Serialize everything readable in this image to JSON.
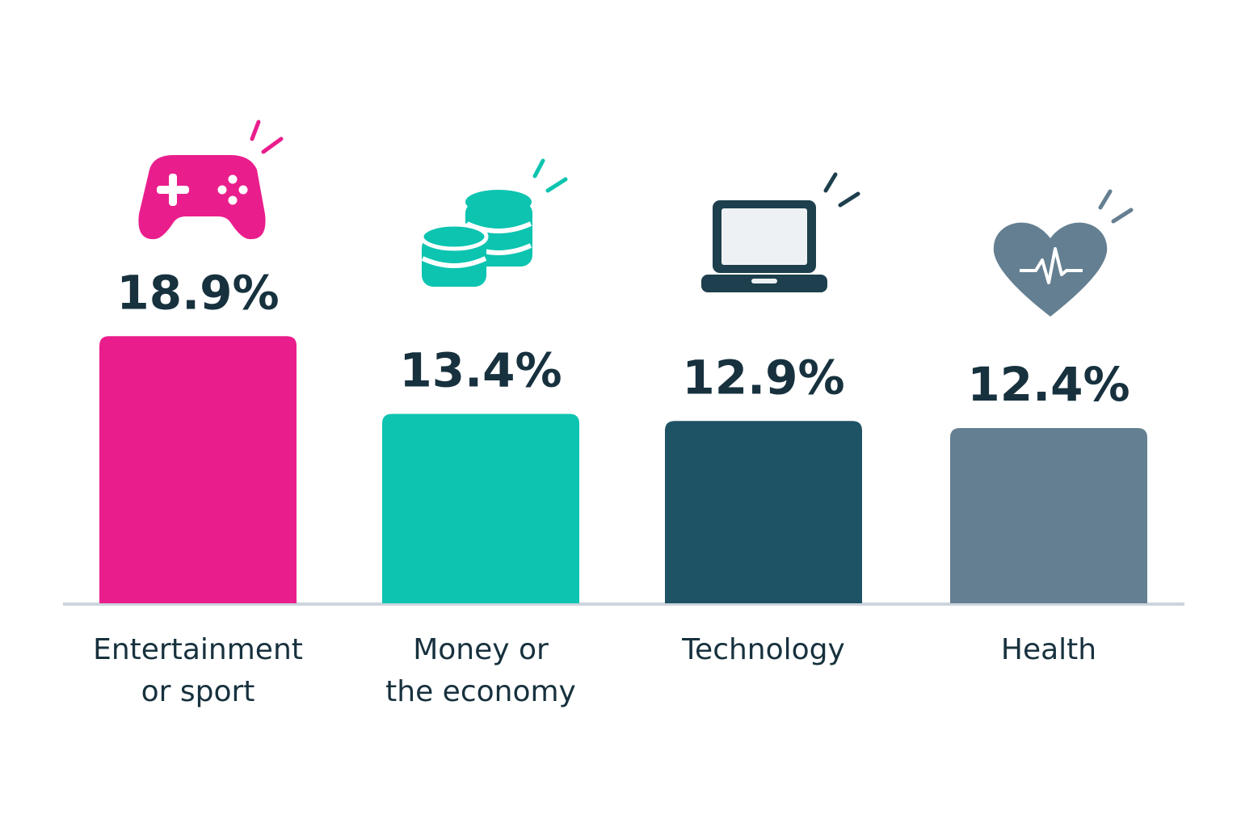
{
  "chart_data": {
    "type": "bar",
    "categories": [
      [
        "Entertainment",
        "or sport"
      ],
      [
        "Money or",
        "the economy"
      ],
      [
        "Technology"
      ],
      [
        "Health"
      ]
    ],
    "values": [
      18.9,
      13.4,
      12.9,
      12.4
    ],
    "value_labels": [
      "18.9%",
      "13.4%",
      "12.9%",
      "12.4%"
    ],
    "colors": [
      "#e91e8c",
      "#0cc4b0",
      "#1e5366",
      "#647f91"
    ]
  }
}
